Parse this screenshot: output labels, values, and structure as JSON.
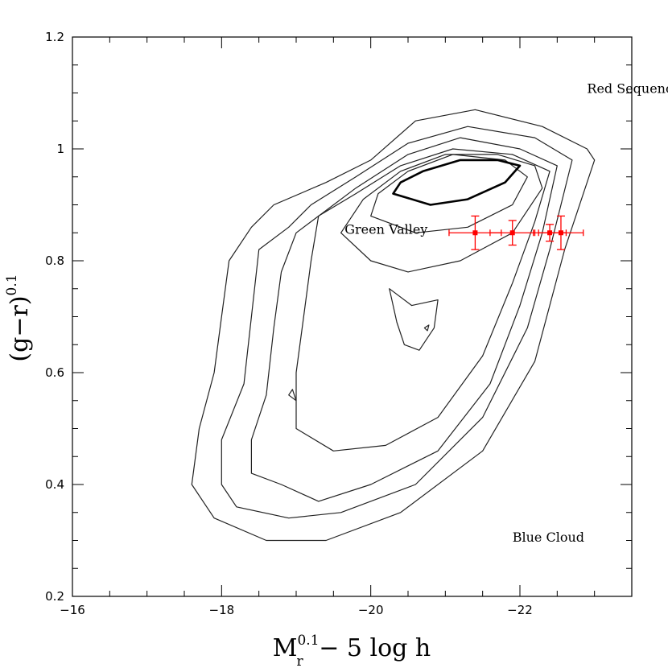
{
  "chart_data": {
    "type": "contour",
    "xlabel": {
      "main": "M",
      "sup": "0.1",
      "sub": "r",
      "rest": " − 5 log h"
    },
    "ylabel": {
      "main": "(g−r)",
      "sup": "0.1"
    },
    "xlim": [
      -16,
      -23.5
    ],
    "ylim": [
      0.2,
      1.2
    ],
    "x_ticks": [
      {
        "value": -16,
        "label": "−16"
      },
      {
        "value": -18,
        "label": "−18"
      },
      {
        "value": -20,
        "label": "−20"
      },
      {
        "value": -22,
        "label": "−22"
      }
    ],
    "y_ticks": [
      {
        "value": 0.2,
        "label": "0.2"
      },
      {
        "value": 0.4,
        "label": "0.4"
      },
      {
        "value": 0.6,
        "label": "0.6"
      },
      {
        "value": 0.8,
        "label": "0.8"
      },
      {
        "value": 1.0,
        "label": "1"
      },
      {
        "value": 1.2,
        "label": "1.2"
      }
    ],
    "annotations": [
      {
        "text": "Red Sequence",
        "x": -22.9,
        "y": 1.1
      },
      {
        "text": "Green Valley",
        "x": -19.65,
        "y": 0.848
      },
      {
        "text": "Blue Cloud",
        "x": -21.9,
        "y": 0.298
      }
    ],
    "contours": [
      {
        "level": 1,
        "points": [
          [
            -17.6,
            0.4
          ],
          [
            -17.9,
            0.34
          ],
          [
            -18.6,
            0.3
          ],
          [
            -19.4,
            0.3
          ],
          [
            -20.4,
            0.35
          ],
          [
            -21.5,
            0.46
          ],
          [
            -22.2,
            0.62
          ],
          [
            -22.6,
            0.82
          ],
          [
            -23.0,
            0.98
          ],
          [
            -22.9,
            1.0
          ],
          [
            -22.3,
            1.04
          ],
          [
            -21.4,
            1.07
          ],
          [
            -20.6,
            1.05
          ],
          [
            -20.0,
            0.98
          ],
          [
            -19.4,
            0.94
          ],
          [
            -18.7,
            0.9
          ],
          [
            -18.4,
            0.86
          ],
          [
            -18.1,
            0.8
          ],
          [
            -18.0,
            0.7
          ],
          [
            -17.9,
            0.6
          ],
          [
            -17.7,
            0.5
          ],
          [
            -17.6,
            0.4
          ]
        ]
      },
      {
        "level": 2,
        "points": [
          [
            -18.0,
            0.4
          ],
          [
            -18.2,
            0.36
          ],
          [
            -18.9,
            0.34
          ],
          [
            -19.6,
            0.35
          ],
          [
            -20.6,
            0.4
          ],
          [
            -21.5,
            0.52
          ],
          [
            -22.1,
            0.68
          ],
          [
            -22.4,
            0.82
          ],
          [
            -22.7,
            0.98
          ],
          [
            -22.2,
            1.02
          ],
          [
            -21.3,
            1.04
          ],
          [
            -20.5,
            1.01
          ],
          [
            -19.8,
            0.95
          ],
          [
            -19.2,
            0.9
          ],
          [
            -18.9,
            0.86
          ],
          [
            -18.5,
            0.82
          ],
          [
            -18.4,
            0.7
          ],
          [
            -18.3,
            0.58
          ],
          [
            -18.0,
            0.48
          ],
          [
            -18.0,
            0.4
          ]
        ]
      },
      {
        "level": 3,
        "points": [
          [
            -18.4,
            0.42
          ],
          [
            -18.8,
            0.4
          ],
          [
            -19.3,
            0.37
          ],
          [
            -20.0,
            0.4
          ],
          [
            -20.9,
            0.46
          ],
          [
            -21.6,
            0.58
          ],
          [
            -22.0,
            0.72
          ],
          [
            -22.3,
            0.85
          ],
          [
            -22.5,
            0.97
          ],
          [
            -22.0,
            1.0
          ],
          [
            -21.2,
            1.02
          ],
          [
            -20.5,
            0.99
          ],
          [
            -19.8,
            0.93
          ],
          [
            -19.4,
            0.89
          ],
          [
            -19.0,
            0.85
          ],
          [
            -18.8,
            0.78
          ],
          [
            -18.7,
            0.68
          ],
          [
            -18.6,
            0.56
          ],
          [
            -18.4,
            0.48
          ],
          [
            -18.4,
            0.42
          ]
        ]
      },
      {
        "level": 4,
        "points": [
          [
            -19.0,
            0.5
          ],
          [
            -19.5,
            0.46
          ],
          [
            -20.2,
            0.47
          ],
          [
            -20.9,
            0.52
          ],
          [
            -21.5,
            0.63
          ],
          [
            -21.9,
            0.76
          ],
          [
            -22.2,
            0.87
          ],
          [
            -22.4,
            0.96
          ],
          [
            -21.9,
            0.99
          ],
          [
            -21.1,
            1.0
          ],
          [
            -20.4,
            0.97
          ],
          [
            -19.8,
            0.92
          ],
          [
            -19.3,
            0.88
          ],
          [
            -19.2,
            0.8
          ],
          [
            -19.1,
            0.7
          ],
          [
            -19.0,
            0.6
          ],
          [
            -19.0,
            0.5
          ]
        ]
      },
      {
        "level": 5,
        "points": [
          [
            -19.6,
            0.85
          ],
          [
            -20.0,
            0.8
          ],
          [
            -20.5,
            0.78
          ],
          [
            -21.2,
            0.8
          ],
          [
            -21.9,
            0.85
          ],
          [
            -22.3,
            0.93
          ],
          [
            -22.2,
            0.97
          ],
          [
            -21.7,
            0.99
          ],
          [
            -21.0,
            0.99
          ],
          [
            -20.4,
            0.96
          ],
          [
            -19.9,
            0.91
          ],
          [
            -19.6,
            0.85
          ]
        ]
      },
      {
        "level": 6,
        "points": [
          [
            -20.0,
            0.88
          ],
          [
            -20.6,
            0.85
          ],
          [
            -21.3,
            0.86
          ],
          [
            -21.9,
            0.9
          ],
          [
            -22.1,
            0.95
          ],
          [
            -21.8,
            0.98
          ],
          [
            -21.1,
            0.99
          ],
          [
            -20.5,
            0.96
          ],
          [
            -20.1,
            0.92
          ],
          [
            -20.0,
            0.88
          ]
        ]
      },
      {
        "level": 7,
        "points": [
          [
            -20.3,
            0.92
          ],
          [
            -20.8,
            0.9
          ],
          [
            -21.3,
            0.91
          ],
          [
            -21.8,
            0.94
          ],
          [
            -22.0,
            0.97
          ],
          [
            -21.7,
            0.98
          ],
          [
            -21.2,
            0.98
          ],
          [
            -20.7,
            0.96
          ],
          [
            -20.4,
            0.94
          ],
          [
            -20.3,
            0.92
          ]
        ]
      },
      {
        "level": 8,
        "points": [
          [
            -20.25,
            0.75
          ],
          [
            -20.55,
            0.72
          ],
          [
            -20.9,
            0.73
          ],
          [
            -20.85,
            0.68
          ],
          [
            -20.65,
            0.64
          ],
          [
            -20.45,
            0.65
          ],
          [
            -20.35,
            0.69
          ],
          [
            -20.25,
            0.75
          ]
        ]
      },
      {
        "level": 9,
        "points": [
          [
            -18.9,
            0.56
          ],
          [
            -19.0,
            0.55
          ],
          [
            -18.95,
            0.57
          ],
          [
            -18.9,
            0.56
          ]
        ]
      },
      {
        "level": 10,
        "points": [
          [
            -20.72,
            0.68
          ],
          [
            -20.76,
            0.675
          ],
          [
            -20.78,
            0.685
          ],
          [
            -20.72,
            0.68
          ]
        ]
      }
    ],
    "error_points": [
      {
        "x": -21.4,
        "y": 0.85,
        "x_err": 0.35,
        "y_err": 0.03
      },
      {
        "x": -21.9,
        "y": 0.85,
        "x_err": 0.3,
        "y_err": 0.022
      },
      {
        "x": -22.4,
        "y": 0.85,
        "x_err": 0.22,
        "y_err": 0.015
      },
      {
        "x": -22.55,
        "y": 0.85,
        "x_err": 0.3,
        "y_err": 0.03
      }
    ],
    "colors": {
      "errorbars": "#ff0000",
      "contours": "#222222",
      "axes": "#000000"
    }
  }
}
